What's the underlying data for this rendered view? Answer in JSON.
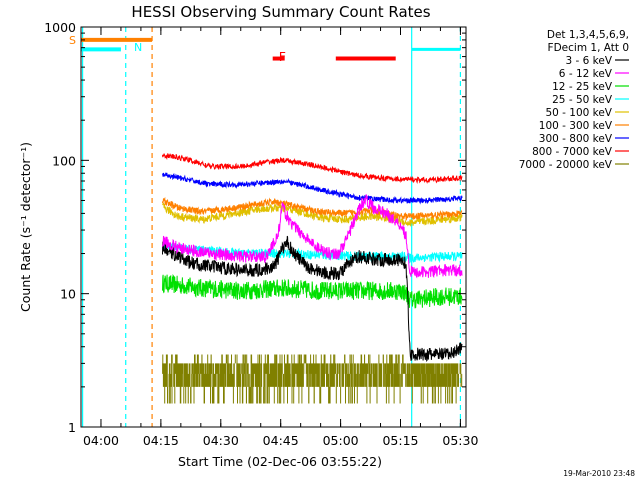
{
  "chart_data": {
    "type": "line",
    "title": "HESSI Observing Summary Count Rates",
    "xlabel": "Start Time (02-Dec-06 03:55:22)",
    "ylabel": "Count Rate (s⁻¹ detector⁻¹)",
    "yscale": "log",
    "ylim": [
      1,
      1000
    ],
    "xlim_minutes": [
      -0.4,
      96
    ],
    "x_ticks": [
      {
        "label": "04:00",
        "t": 4.6
      },
      {
        "label": "04:15",
        "t": 19.6
      },
      {
        "label": "04:30",
        "t": 34.6
      },
      {
        "label": "04:45",
        "t": 49.6
      },
      {
        "label": "05:00",
        "t": 64.6
      },
      {
        "label": "05:15",
        "t": 79.6
      },
      {
        "label": "05:30",
        "t": 94.6
      }
    ],
    "y_ticks": [
      {
        "label": "1",
        "v": 1
      },
      {
        "label": "10",
        "v": 10
      },
      {
        "label": "100",
        "v": 100
      },
      {
        "label": "1000",
        "v": 1000
      }
    ],
    "legend_header": [
      "Det 1,3,4,5,6,9,",
      "FDecim 1, Att 0"
    ],
    "legend_position": "right",
    "series": [
      {
        "name": "3 - 6 keV",
        "color": "#000000",
        "x": [
          20,
          24,
          27,
          32,
          40,
          44,
          48,
          51,
          53,
          56,
          60,
          64,
          66,
          69,
          74,
          79,
          81,
          82,
          87,
          92,
          95
        ],
        "values": [
          22,
          19,
          17,
          16,
          15,
          15,
          16,
          25,
          20,
          16,
          14.5,
          14,
          16,
          19,
          18,
          18,
          17,
          3.5,
          3.5,
          3.5,
          4
        ]
      },
      {
        "name": "6 - 12 keV",
        "color": "#ff00ff",
        "x": [
          20,
          24,
          32,
          40,
          46,
          49,
          50,
          52,
          55,
          58,
          62,
          64,
          66,
          68,
          70,
          71,
          73,
          76,
          80,
          81,
          82,
          86,
          91,
          95
        ],
        "values": [
          25,
          22,
          20,
          19,
          19,
          28,
          45,
          34,
          28,
          23,
          20,
          20,
          25,
          35,
          48,
          50,
          44,
          40,
          32,
          27,
          14.5,
          14.5,
          15,
          15
        ]
      },
      {
        "name": "12 - 25 keV",
        "color": "#00e000",
        "x": [
          20,
          30,
          40,
          50,
          60,
          70,
          80,
          81,
          82,
          90,
          95
        ],
        "values": [
          12,
          11,
          10.5,
          11,
          10.5,
          10.5,
          10.5,
          10,
          9,
          9.5,
          9.5
        ]
      },
      {
        "name": "25 - 50 keV",
        "color": "#00ffff",
        "x": [
          20,
          30,
          40,
          50,
          60,
          70,
          80,
          81,
          82,
          90,
          95
        ],
        "values": [
          23,
          21,
          20,
          20,
          19.5,
          19,
          19,
          19,
          18.5,
          19,
          19
        ]
      },
      {
        "name": "50 - 100 keV",
        "color": "#e0c000",
        "x": [
          20,
          24,
          30,
          38,
          44,
          48,
          52,
          56,
          60,
          66,
          72,
          76,
          80,
          81,
          82,
          90,
          95
        ],
        "values": [
          45,
          38,
          36,
          40,
          43,
          44,
          43,
          40,
          37,
          36,
          38,
          37,
          35,
          34,
          34,
          36,
          37
        ]
      },
      {
        "name": "100 - 300 keV",
        "color": "#ff8000",
        "x": [
          20,
          24,
          30,
          38,
          44,
          48,
          52,
          56,
          60,
          66,
          72,
          76,
          80,
          82,
          90,
          95
        ],
        "values": [
          50,
          44,
          41,
          44,
          47,
          49,
          46,
          43,
          41,
          40,
          42,
          40,
          38,
          38,
          39,
          40
        ]
      },
      {
        "name": "300 - 800 keV",
        "color": "#0000ff",
        "x": [
          20,
          26,
          32,
          40,
          46,
          50,
          56,
          62,
          68,
          74,
          80,
          86,
          90,
          95
        ],
        "values": [
          78,
          72,
          66,
          66,
          68,
          70,
          64,
          58,
          53,
          51,
          50,
          50,
          51,
          52
        ]
      },
      {
        "name": "800 - 7000 keV",
        "color": "#ff0000",
        "x": [
          20,
          26,
          32,
          40,
          46,
          50,
          56,
          62,
          68,
          74,
          80,
          86,
          90,
          95
        ],
        "values": [
          110,
          102,
          90,
          90,
          97,
          100,
          94,
          86,
          78,
          74,
          72,
          71,
          72,
          74
        ]
      },
      {
        "name": "7000 - 20000 keV",
        "color": "#808000",
        "x": [
          20,
          95
        ],
        "values": [
          2.5,
          2.5
        ],
        "note": "quantized noise between 2 and 3, spikes to 3.5, dips to 1.5"
      }
    ],
    "pre_saa": [
      {
        "label": "S",
        "color": "#ff8000",
        "x": [
          -0.4,
          17.4
        ],
        "value": 800
      },
      {
        "label": "N",
        "color": "#00ffff",
        "x": [
          -0.4,
          9.6
        ],
        "value": 680
      }
    ],
    "post_saa": {
      "color": "#00ffff",
      "x": [
        82.4,
        94.6
      ],
      "value": 680
    },
    "flare_flag": {
      "label": "F",
      "color": "#ff0000",
      "segments": [
        [
          47.6,
          50.6
        ],
        [
          63.4,
          78.4
        ]
      ],
      "value": 580
    },
    "vertical_markers": [
      {
        "t": 0.0,
        "color": "#00ffff",
        "style": "solid"
      },
      {
        "t": 10.8,
        "color": "#00ffff",
        "style": "dashed"
      },
      {
        "t": 17.4,
        "color": "#ff8000",
        "style": "dashed"
      },
      {
        "t": 82.4,
        "color": "#00ffff",
        "style": "solid"
      },
      {
        "t": 94.6,
        "color": "#00ffff",
        "style": "dashed"
      }
    ]
  },
  "footer": {
    "timestamp": "19-Mar-2010 23:48"
  },
  "colors": {
    "axes": "#000000",
    "background": "#ffffff"
  }
}
